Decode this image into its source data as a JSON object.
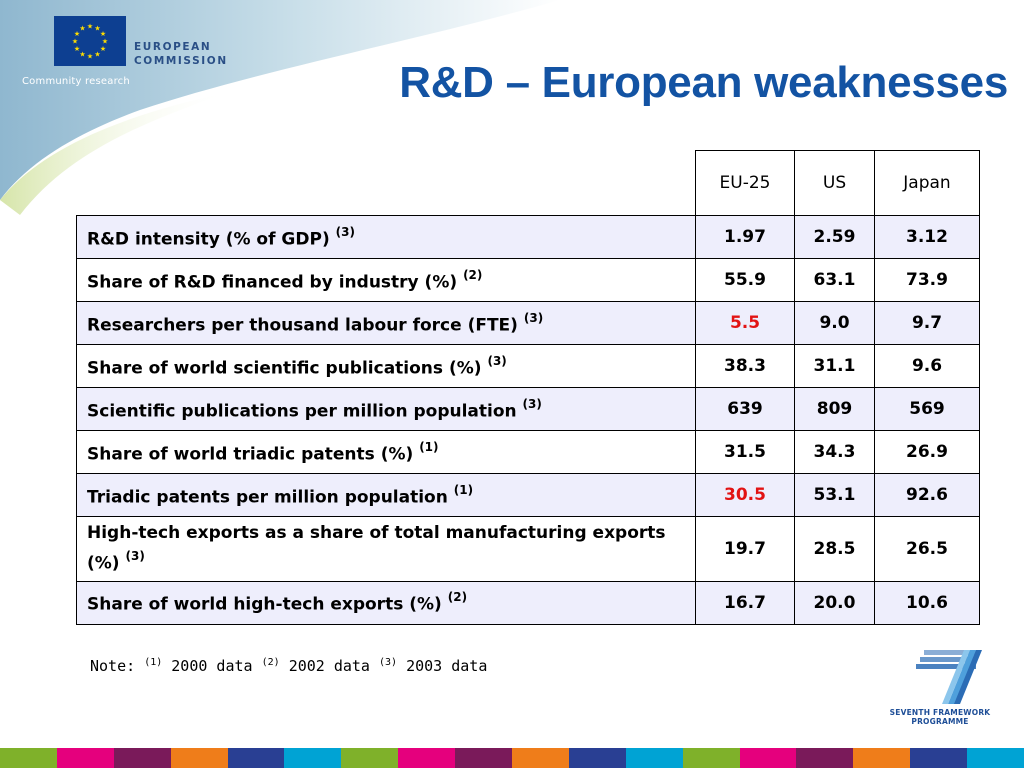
{
  "header": {
    "eu_org_line1": "EUROPEAN",
    "eu_org_line2": "COMMISSION",
    "community": "Community research",
    "title": "R&D – European weaknesses"
  },
  "table": {
    "columns": [
      "EU-25",
      "US",
      "Japan"
    ],
    "rows": [
      {
        "label": "R&D intensity (% of GDP)",
        "ref": "(3)",
        "values": [
          "1.97",
          "2.59",
          "3.12"
        ]
      },
      {
        "label": "Share of R&D financed by industry (%)",
        "ref": "(2)",
        "values": [
          "55.9",
          "63.1",
          "73.9"
        ]
      },
      {
        "label": "Researchers per thousand labour force (FTE)",
        "ref": "(3)",
        "values": [
          "5.5",
          "9.0",
          "9.7"
        ]
      },
      {
        "label": "Share of world scientific publications (%)",
        "ref": "(3)",
        "values": [
          "38.3",
          "31.1",
          "9.6"
        ]
      },
      {
        "label": "Scientific publications per million population",
        "ref": "(3)",
        "values": [
          "639",
          "809",
          "569"
        ]
      },
      {
        "label": "Share of world triadic patents (%)",
        "ref": "(1)",
        "values": [
          "31.5",
          "34.3",
          "26.9"
        ]
      },
      {
        "label": "Triadic patents per million population",
        "ref": "(1)",
        "values": [
          "30.5",
          "53.1",
          "92.6"
        ]
      },
      {
        "label": "High-tech exports as a share of total manufacturing exports (%)",
        "ref": "(3)",
        "values": [
          "19.7",
          "28.5",
          "26.5"
        ]
      },
      {
        "label": "Share of world high-tech exports (%)",
        "ref": "(2)",
        "values": [
          "16.7",
          "20.0",
          "10.6"
        ]
      }
    ]
  },
  "note": {
    "prefix": "Note:",
    "items": [
      {
        "ref": "(1)",
        "text": "2000 data"
      },
      {
        "ref": "(2)",
        "text": "2002 data"
      },
      {
        "ref": "(3)",
        "text": "2003 data"
      }
    ]
  },
  "fp7": {
    "line1": "SEVENTH FRAMEWORK",
    "line2": "PROGRAMME"
  },
  "colors": {
    "title": "#1353a3",
    "highlight": "#e21313",
    "alt_row": "#eeeefc",
    "strip": [
      "#7fb12a",
      "#e5007d",
      "#7a1a5a",
      "#ef7d1a",
      "#293f93",
      "#00a3d4",
      "#7fb12a",
      "#e5007d",
      "#7a1a5a",
      "#ef7d1a",
      "#293f93",
      "#00a3d4",
      "#7fb12a",
      "#e5007d",
      "#7a1a5a",
      "#ef7d1a",
      "#293f93",
      "#00a3d4"
    ]
  },
  "highlights": {
    "2": [
      0
    ],
    "6": [
      0
    ]
  }
}
